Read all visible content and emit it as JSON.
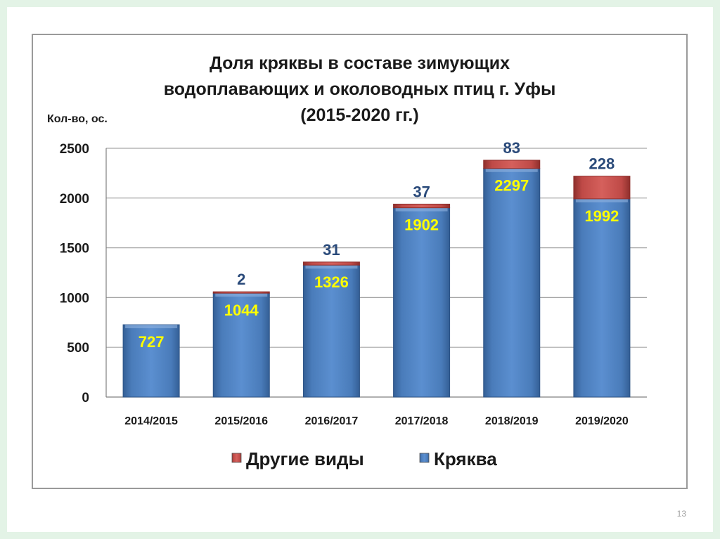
{
  "slide": {
    "page_number": "13"
  },
  "chart_data": {
    "type": "bar",
    "stacked": true,
    "title_lines": [
      "Доля кряквы в составе зимующих",
      "водоплавающих и околоводных птиц г. Уфы",
      "(2015-2020 гг.)"
    ],
    "ylabel": "Кол-во, ос.",
    "xlabel": "",
    "ylim": [
      0,
      2500
    ],
    "yticks": [
      0,
      500,
      1000,
      1500,
      2000,
      2500
    ],
    "grid": true,
    "legend_position": "bottom",
    "categories": [
      "2014/2015",
      "2015/2016",
      "2016/2017",
      "2017/2018",
      "2018/2019",
      "2019/2020"
    ],
    "series": [
      {
        "name": "Кряква",
        "color": "#4f81bd",
        "values": [
          727,
          1044,
          1326,
          1902,
          2297,
          1992
        ]
      },
      {
        "name": "Другие виды",
        "color": "#c0504d",
        "values": [
          null,
          2,
          31,
          37,
          83,
          228
        ]
      }
    ],
    "data_labels": {
      "inside": [
        "727",
        "1044",
        "1326",
        "1902",
        "2297",
        "1992"
      ],
      "top": [
        "",
        "2",
        "31",
        "37",
        "83",
        "228"
      ]
    },
    "legend_order": [
      "Другие виды",
      "Кряква"
    ]
  }
}
